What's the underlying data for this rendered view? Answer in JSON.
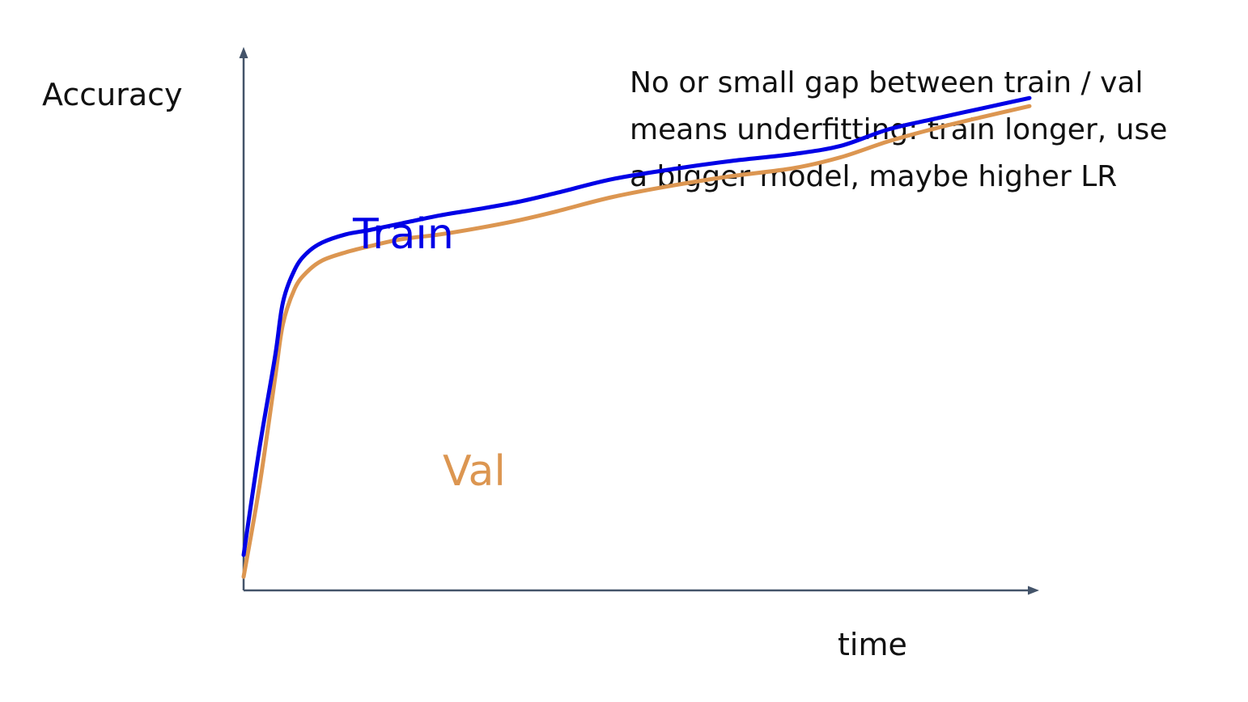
{
  "chart_data": {
    "type": "line",
    "title": "",
    "xlabel": "time",
    "ylabel": "Accuracy",
    "xlim": [
      0,
      100
    ],
    "ylim": [
      0,
      100
    ],
    "grid": false,
    "legend": "inline labels",
    "annotation": {
      "lines": [
        "No or small gap between train / val",
        "means underfitting: train longer, use",
        "a bigger model, maybe higher LR"
      ]
    },
    "series": [
      {
        "name": "Train",
        "color": "#0000e6",
        "x": [
          0,
          2,
          4,
          5,
          6.5,
          8,
          10,
          13,
          16,
          20,
          25,
          30,
          35,
          40,
          47,
          55,
          62,
          70,
          76,
          82,
          88,
          94,
          100
        ],
        "y": [
          6.5,
          26,
          43,
          53,
          59,
          62,
          64,
          65.5,
          66.3,
          67.5,
          69,
          70.2,
          71.5,
          73.2,
          75.7,
          77.6,
          79,
          80.3,
          81.8,
          84.8,
          86.8,
          88.7,
          90.6
        ]
      },
      {
        "name": "Val",
        "color": "#dc9651",
        "x": [
          0,
          2,
          4,
          5,
          6.5,
          8,
          10,
          13,
          16,
          20,
          25,
          30,
          35,
          40,
          47,
          55,
          62,
          70,
          76,
          82,
          88,
          94,
          100
        ],
        "y": [
          2.5,
          19,
          39,
          49,
          55.5,
          58.5,
          60.7,
          62.2,
          63.3,
          64.6,
          65.5,
          66.7,
          68.1,
          69.8,
          72.4,
          74.6,
          76.2,
          77.7,
          79.7,
          82.6,
          85,
          87.1,
          89.1
        ]
      }
    ]
  }
}
